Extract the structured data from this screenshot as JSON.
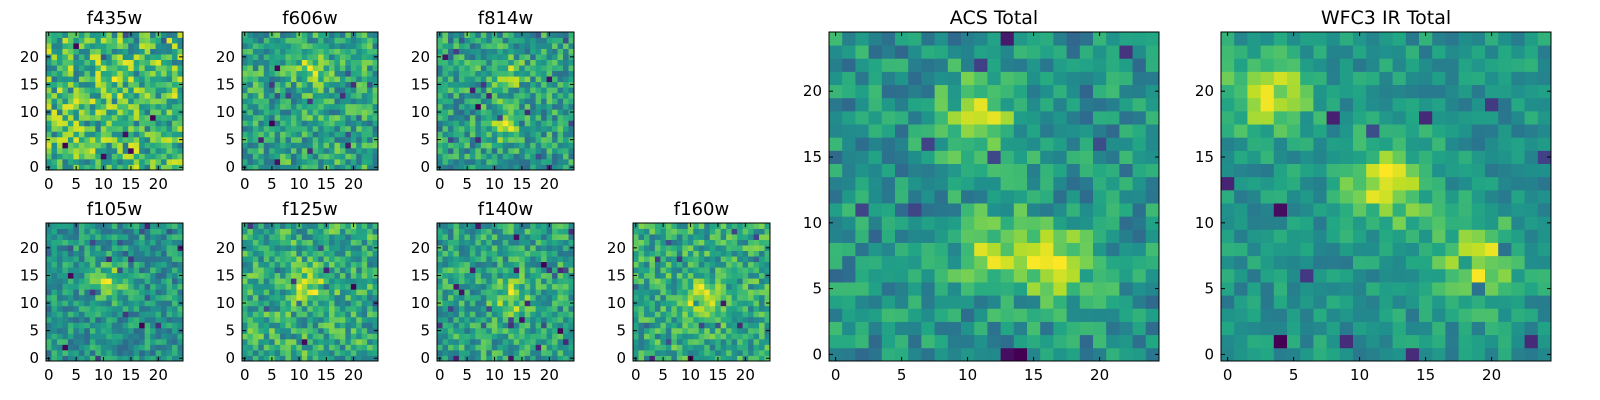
{
  "chart_data": [
    {
      "type": "heatmap",
      "title": "f435w",
      "grid_size": 25,
      "x_ticks": [
        0,
        5,
        10,
        15,
        20
      ],
      "y_ticks": [
        0,
        5,
        10,
        15,
        20
      ],
      "xlim": [
        -0.5,
        24.5
      ],
      "ylim": [
        -0.5,
        24.5
      ],
      "colormap": "viridis",
      "seed": 11,
      "blob_strength": 0.1,
      "noise": 0.55,
      "blob_centers": [
        [
          12,
          16
        ]
      ]
    },
    {
      "type": "heatmap",
      "title": "f606w",
      "grid_size": 25,
      "x_ticks": [
        0,
        5,
        10,
        15,
        20
      ],
      "y_ticks": [
        0,
        5,
        10,
        15,
        20
      ],
      "xlim": [
        -0.5,
        24.5
      ],
      "ylim": [
        -0.5,
        24.5
      ],
      "colormap": "viridis",
      "seed": 23,
      "blob_strength": 0.35,
      "noise": 0.45,
      "blob_centers": [
        [
          12,
          18
        ]
      ]
    },
    {
      "type": "heatmap",
      "title": "f814w",
      "grid_size": 25,
      "x_ticks": [
        0,
        5,
        10,
        15,
        20
      ],
      "y_ticks": [
        0,
        5,
        10,
        15,
        20
      ],
      "xlim": [
        -0.5,
        24.5
      ],
      "ylim": [
        -0.5,
        24.5
      ],
      "colormap": "viridis",
      "seed": 37,
      "blob_strength": 0.4,
      "noise": 0.45,
      "blob_centers": [
        [
          12,
          17
        ],
        [
          12,
          8
        ]
      ]
    },
    {
      "type": "heatmap",
      "title": "f105w",
      "grid_size": 25,
      "x_ticks": [
        0,
        5,
        10,
        15,
        20
      ],
      "y_ticks": [
        0,
        5,
        10,
        15,
        20
      ],
      "xlim": [
        -0.5,
        24.5
      ],
      "ylim": [
        -0.5,
        24.5
      ],
      "colormap": "viridis",
      "seed": 41,
      "blob_strength": 0.45,
      "noise": 0.35,
      "blob_centers": [
        [
          11,
          14
        ]
      ]
    },
    {
      "type": "heatmap",
      "title": "f125w",
      "grid_size": 25,
      "x_ticks": [
        0,
        5,
        10,
        15,
        20
      ],
      "y_ticks": [
        0,
        5,
        10,
        15,
        20
      ],
      "xlim": [
        -0.5,
        24.5
      ],
      "ylim": [
        -0.5,
        24.5
      ],
      "colormap": "viridis",
      "seed": 53,
      "blob_strength": 0.35,
      "noise": 0.4,
      "blob_centers": [
        [
          12,
          13
        ]
      ]
    },
    {
      "type": "heatmap",
      "title": "f140w",
      "grid_size": 25,
      "x_ticks": [
        0,
        5,
        10,
        15,
        20
      ],
      "y_ticks": [
        0,
        5,
        10,
        15,
        20
      ],
      "xlim": [
        -0.5,
        24.5
      ],
      "ylim": [
        -0.5,
        24.5
      ],
      "colormap": "viridis",
      "seed": 67,
      "blob_strength": 0.4,
      "noise": 0.4,
      "blob_centers": [
        [
          13,
          11
        ]
      ]
    },
    {
      "type": "heatmap",
      "title": "f160w",
      "grid_size": 25,
      "x_ticks": [
        0,
        5,
        10,
        15,
        20
      ],
      "y_ticks": [
        0,
        5,
        10,
        15,
        20
      ],
      "xlim": [
        -0.5,
        24.5
      ],
      "ylim": [
        -0.5,
        24.5
      ],
      "colormap": "viridis",
      "seed": 79,
      "blob_strength": 0.45,
      "noise": 0.35,
      "blob_centers": [
        [
          12,
          11
        ]
      ]
    },
    {
      "type": "heatmap",
      "title": "ACS Total",
      "grid_size": 25,
      "x_ticks": [
        0,
        5,
        10,
        15,
        20
      ],
      "y_ticks": [
        0,
        5,
        10,
        15,
        20
      ],
      "xlim": [
        -0.5,
        24.5
      ],
      "ylim": [
        -0.5,
        24.5
      ],
      "colormap": "viridis",
      "seed": 97,
      "blob_strength": 0.55,
      "noise": 0.4,
      "blob_centers": [
        [
          11,
          18
        ],
        [
          12,
          8
        ],
        [
          17,
          7
        ]
      ]
    },
    {
      "type": "heatmap",
      "title": "WFC3 IR Total",
      "grid_size": 25,
      "x_ticks": [
        0,
        5,
        10,
        15,
        20
      ],
      "y_ticks": [
        0,
        5,
        10,
        15,
        20
      ],
      "xlim": [
        -0.5,
        24.5
      ],
      "ylim": [
        -0.5,
        24.5
      ],
      "colormap": "viridis",
      "seed": 131,
      "blob_strength": 0.6,
      "noise": 0.25,
      "blob_centers": [
        [
          12,
          13
        ],
        [
          3,
          20
        ],
        [
          19,
          7
        ]
      ]
    }
  ]
}
